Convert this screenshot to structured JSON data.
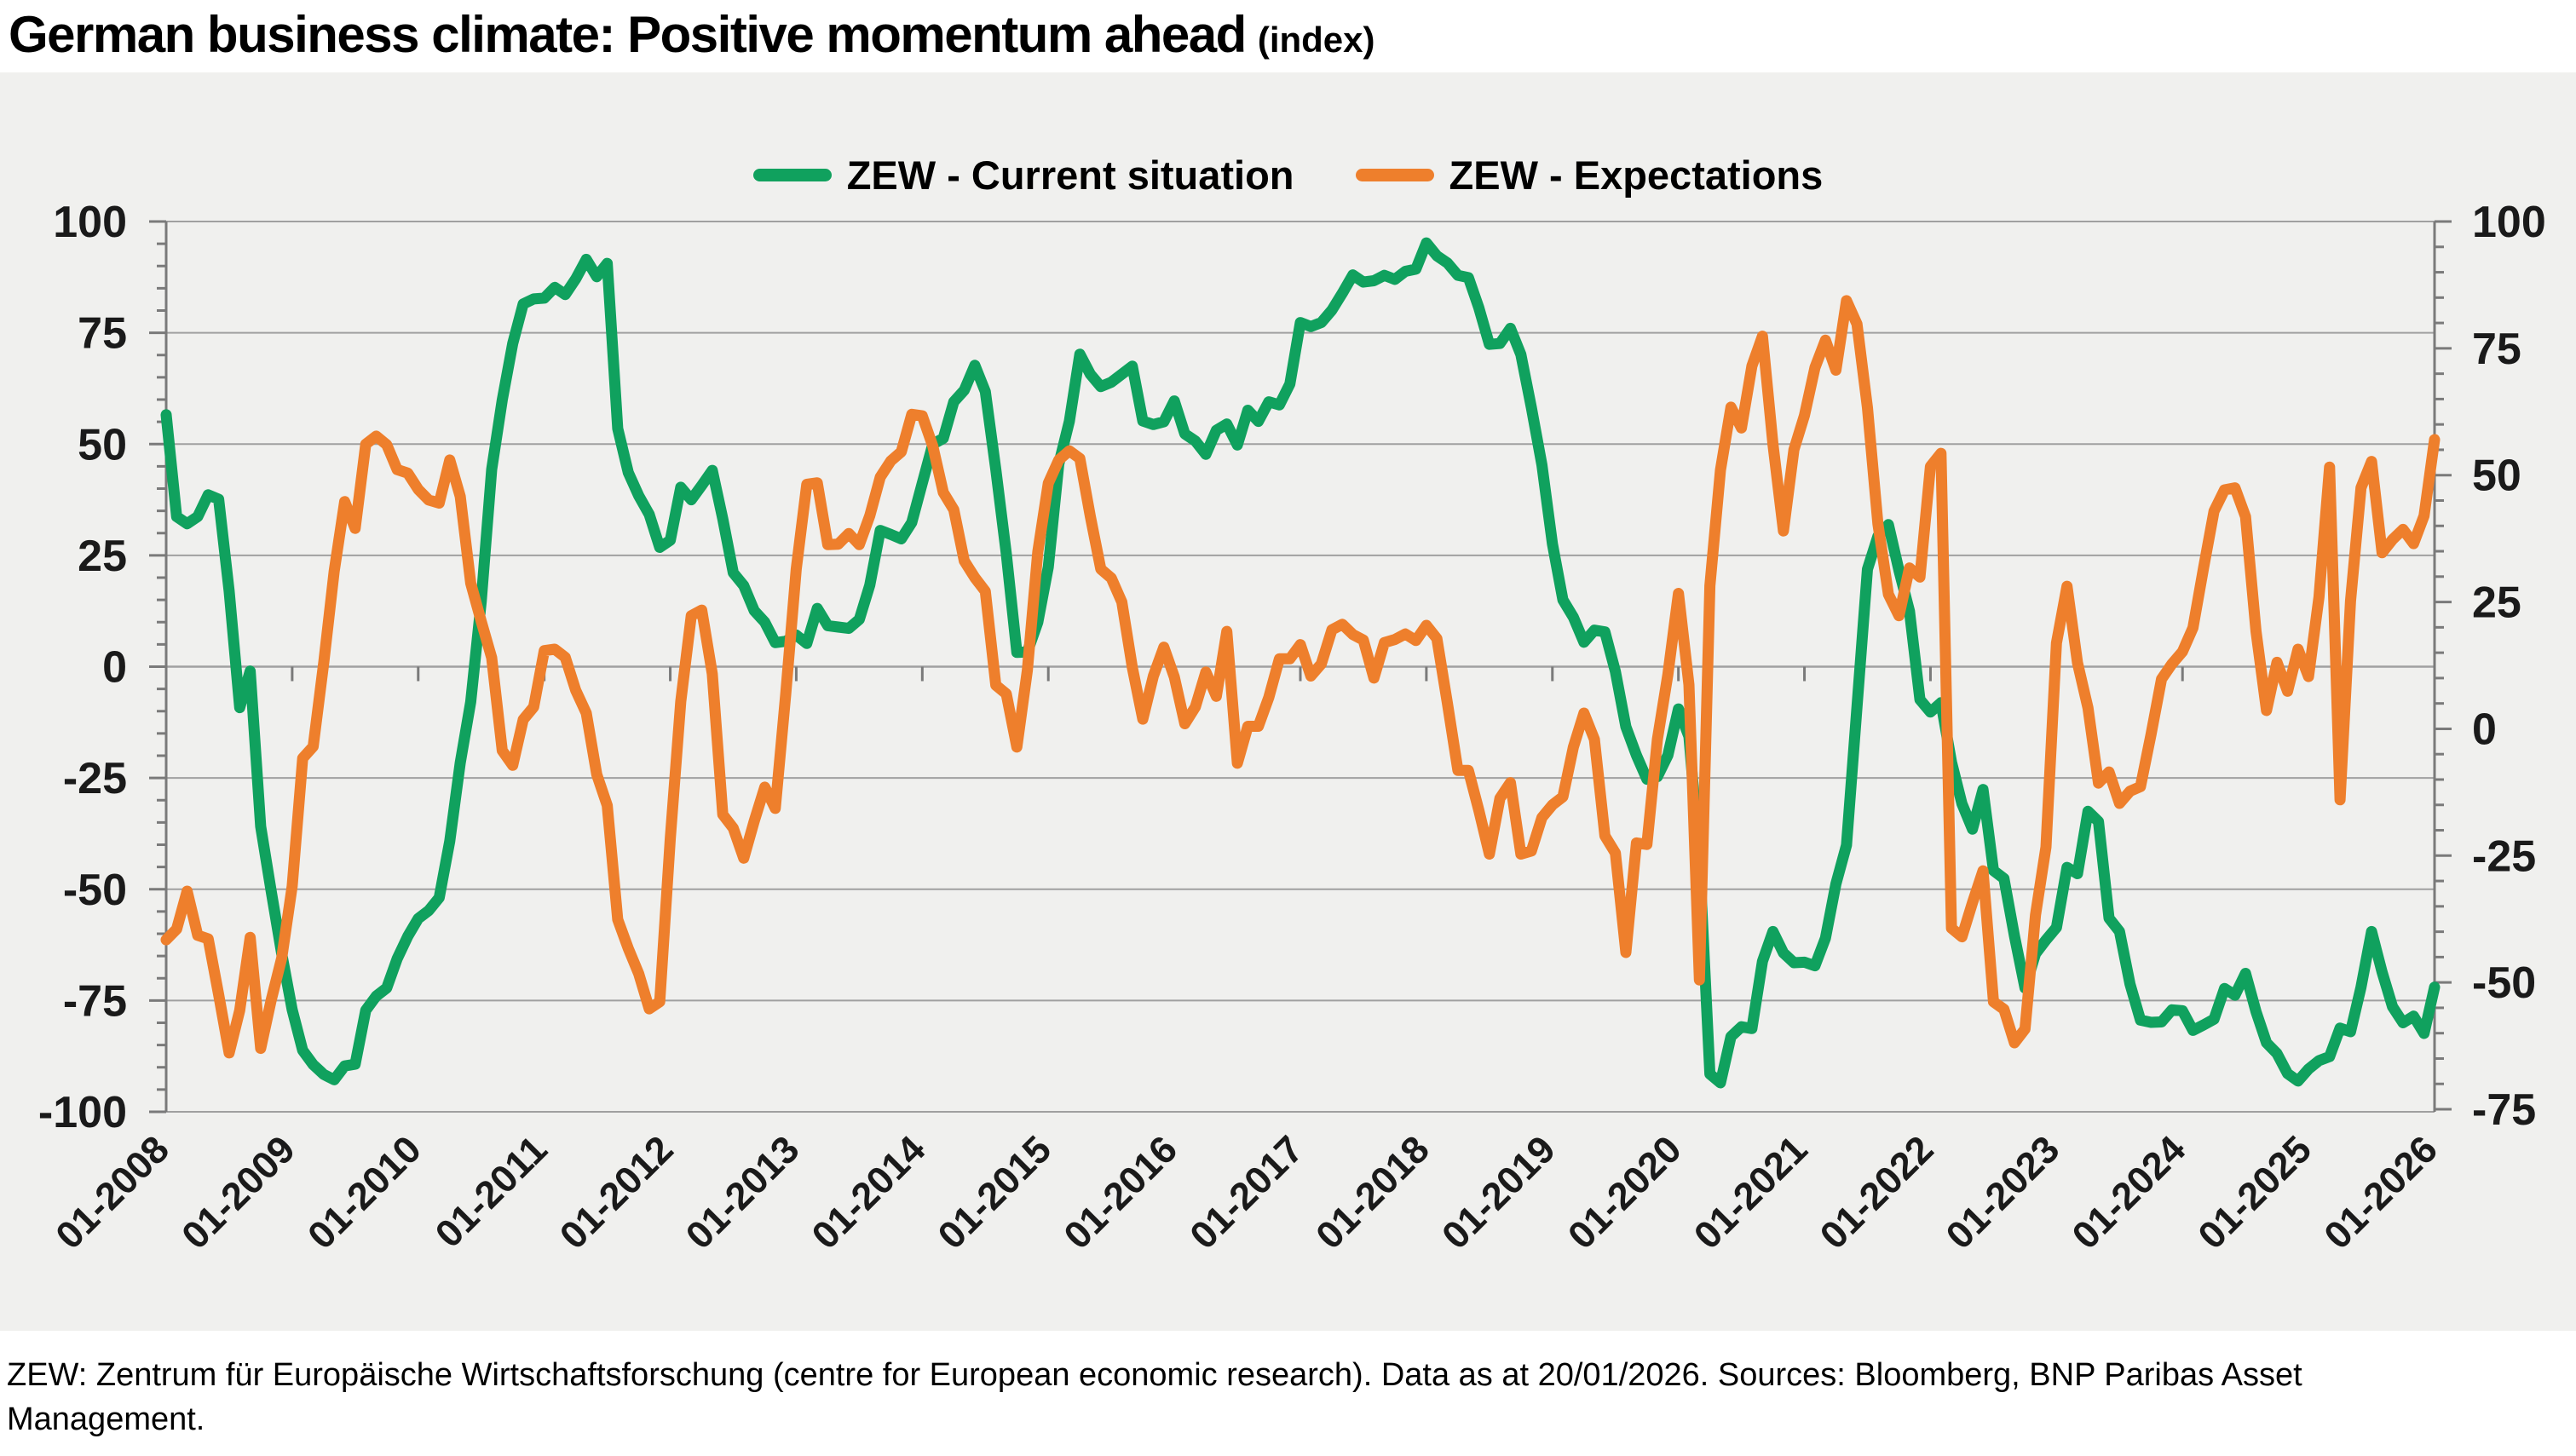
{
  "header": {
    "title": "German business climate: Positive momentum ahead",
    "subtitle": "(index)"
  },
  "footer": {
    "text": "ZEW: Zentrum für Europäische Wirtschaftsforschung (centre for European economic research). Data as at 20/01/2026. Sources: Bloomberg, BNP Paribas Asset Management."
  },
  "colors": {
    "panel_background": "#f0f0ee",
    "gridline": "#a0a0a0",
    "axis": "#7a7a7a",
    "tick_label": "#1a1a1a",
    "current_situation": "#10a15e",
    "expectations": "#ee7f2c"
  },
  "chart_data": {
    "type": "line",
    "title": "German business climate: Positive momentum ahead",
    "subtitle": "(index)",
    "x_start": "01-2008",
    "x_frequency": "monthly",
    "x_tick_labels": [
      "01-2008",
      "01-2009",
      "01-2010",
      "01-2011",
      "01-2012",
      "01-2013",
      "01-2014",
      "01-2015",
      "01-2016",
      "01-2017",
      "01-2018",
      "01-2019",
      "01-2020",
      "01-2021",
      "01-2022",
      "01-2023",
      "01-2024",
      "01-2025",
      "01-2026"
    ],
    "grid": true,
    "legend_position": "top-center",
    "y_left": {
      "label": "",
      "ticks": [
        100,
        75,
        50,
        25,
        0,
        -25,
        -50,
        -75,
        -100
      ],
      "lim": [
        -100,
        100
      ],
      "minor_step": 5
    },
    "y_right": {
      "label": "",
      "ticks": [
        100,
        75,
        50,
        25,
        0,
        -25,
        -50,
        -75
      ],
      "lim": [
        -75.5,
        100
      ],
      "minor_step": 5
    },
    "series": [
      {
        "name": "ZEW - Current situation",
        "axis": "left",
        "color": "#10a15e",
        "values": [
          56.6,
          33.7,
          32.1,
          33.7,
          38.6,
          37.6,
          17.0,
          -9.2,
          -1.0,
          -35.9,
          -50.4,
          -64.5,
          -77.1,
          -86.2,
          -89.4,
          -91.6,
          -92.8,
          -89.7,
          -89.3,
          -77.2,
          -74.0,
          -72.2,
          -65.6,
          -60.6,
          -56.6,
          -54.8,
          -51.9,
          -39.2,
          -21.6,
          -7.9,
          14.6,
          44.3,
          59.9,
          72.6,
          81.5,
          82.6,
          82.8,
          85.2,
          83.6,
          87.1,
          91.5,
          87.6,
          90.6,
          53.5,
          43.6,
          38.4,
          34.2,
          26.8,
          28.4,
          40.3,
          37.5,
          40.7,
          44.1,
          33.2,
          21.1,
          18.2,
          12.6,
          10.0,
          5.4,
          5.7,
          7.1,
          5.2,
          13.1,
          9.2,
          8.9,
          8.6,
          10.6,
          18.3,
          30.6,
          29.7,
          28.7,
          32.4,
          41.2,
          50.0,
          51.3,
          59.5,
          62.1,
          67.7,
          61.8,
          44.3,
          25.4,
          3.2,
          3.3,
          10.0,
          22.4,
          45.5,
          55.1,
          70.2,
          65.7,
          62.9,
          63.9,
          65.7,
          67.5,
          55.2,
          54.4,
          55.0,
          59.7,
          52.3,
          50.7,
          47.7,
          53.1,
          54.5,
          49.8,
          57.6,
          55.1,
          59.5,
          58.8,
          63.5,
          77.3,
          76.4,
          77.3,
          80.1,
          83.9,
          88.0,
          86.4,
          86.7,
          87.9,
          87.0,
          88.8,
          89.3,
          95.2,
          92.3,
          90.7,
          87.9,
          87.4,
          80.6,
          72.4,
          72.6,
          76.0,
          70.1,
          58.2,
          45.3,
          27.6,
          15.0,
          11.1,
          5.5,
          8.2,
          7.8,
          -1.1,
          -13.5,
          -19.9,
          -25.3,
          -24.7,
          -19.9,
          -9.5,
          -15.7,
          -43.1,
          -91.5,
          -93.5,
          -83.1,
          -80.9,
          -81.3,
          -66.2,
          -59.5,
          -64.3,
          -66.5,
          -66.4,
          -67.2,
          -61.0,
          -48.8,
          -40.1,
          -9.1,
          21.9,
          29.3,
          31.9,
          21.6,
          12.5,
          -7.4,
          -10.2,
          -8.1,
          -21.4,
          -30.8,
          -36.5,
          -27.6,
          -45.8,
          -47.6,
          -60.5,
          -72.2,
          -64.5,
          -61.4,
          -58.6,
          -45.1,
          -46.5,
          -32.5,
          -34.8,
          -56.5,
          -59.5,
          -71.3,
          -79.4,
          -79.9,
          -79.8,
          -77.1,
          -77.3,
          -81.7,
          -80.5,
          -79.2,
          -72.3,
          -73.8,
          -68.9,
          -77.5,
          -84.5,
          -86.9,
          -91.4,
          -93.1,
          -90.4,
          -88.5,
          -87.6,
          -81.2,
          -82.0,
          -72.0,
          -59.5,
          -68.6,
          -76.4,
          -80.0,
          -78.5,
          -82.4,
          -72.0
        ]
      },
      {
        "name": "ZEW - Expectations",
        "axis": "right",
        "color": "#ee7f2c",
        "values": [
          -41.6,
          -39.5,
          -32.0,
          -40.7,
          -41.4,
          -52.4,
          -63.9,
          -55.5,
          -41.1,
          -63.0,
          -53.5,
          -45.2,
          -31.0,
          -5.8,
          -3.5,
          13.0,
          31.1,
          44.8,
          39.5,
          56.1,
          57.7,
          56.0,
          51.1,
          50.4,
          47.2,
          45.1,
          44.5,
          53.0,
          45.8,
          28.7,
          21.2,
          14.0,
          -4.3,
          -7.2,
          1.8,
          4.3,
          15.4,
          15.7,
          14.1,
          7.6,
          3.1,
          -9.0,
          -15.1,
          -37.6,
          -43.3,
          -48.3,
          -55.2,
          -53.8,
          -21.6,
          5.4,
          22.3,
          23.4,
          10.8,
          -16.9,
          -19.6,
          -25.5,
          -18.2,
          -11.5,
          -15.7,
          6.9,
          31.5,
          48.2,
          48.5,
          36.3,
          36.4,
          38.5,
          36.3,
          42.0,
          49.6,
          52.8,
          54.6,
          62.0,
          61.7,
          55.7,
          46.6,
          43.2,
          33.1,
          29.8,
          27.1,
          8.6,
          6.9,
          -3.6,
          11.5,
          34.9,
          48.4,
          53.0,
          54.8,
          53.3,
          41.9,
          31.5,
          29.7,
          25.0,
          12.1,
          1.9,
          10.4,
          16.1,
          10.2,
          1.0,
          4.3,
          11.2,
          6.4,
          19.2,
          -6.8,
          0.5,
          0.5,
          6.2,
          13.8,
          13.8,
          16.6,
          10.4,
          12.8,
          19.5,
          20.6,
          18.6,
          17.5,
          10.0,
          17.0,
          17.6,
          18.7,
          17.4,
          20.4,
          17.8,
          5.1,
          -8.2,
          -8.2,
          -16.1,
          -24.7,
          -13.7,
          -10.6,
          -24.7,
          -24.1,
          -17.5,
          -15.0,
          -13.4,
          -3.6,
          3.1,
          -2.1,
          -21.1,
          -24.5,
          -44.1,
          -22.5,
          -22.8,
          -2.1,
          10.7,
          26.7,
          8.7,
          -49.5,
          28.2,
          51.0,
          63.4,
          59.3,
          71.5,
          77.4,
          56.1,
          39.0,
          55.0,
          61.8,
          71.2,
          76.6,
          70.7,
          84.4,
          79.8,
          63.3,
          40.4,
          26.5,
          22.3,
          31.7,
          29.9,
          51.7,
          54.3,
          -39.3,
          -41.0,
          -34.3,
          -28.0,
          -53.8,
          -55.3,
          -61.9,
          -59.2,
          -36.7,
          -23.3,
          16.9,
          28.1,
          13.0,
          4.1,
          -10.7,
          -8.5,
          -14.7,
          -12.3,
          -11.4,
          -1.1,
          9.8,
          12.8,
          15.2,
          19.9,
          31.7,
          42.9,
          47.1,
          47.5,
          41.8,
          19.2,
          3.6,
          13.1,
          7.4,
          15.7,
          10.3,
          26.0,
          51.6,
          -14.0,
          25.2,
          47.5,
          52.7,
          34.7,
          37.3,
          39.3,
          36.5,
          42.0,
          57.0
        ]
      }
    ]
  }
}
